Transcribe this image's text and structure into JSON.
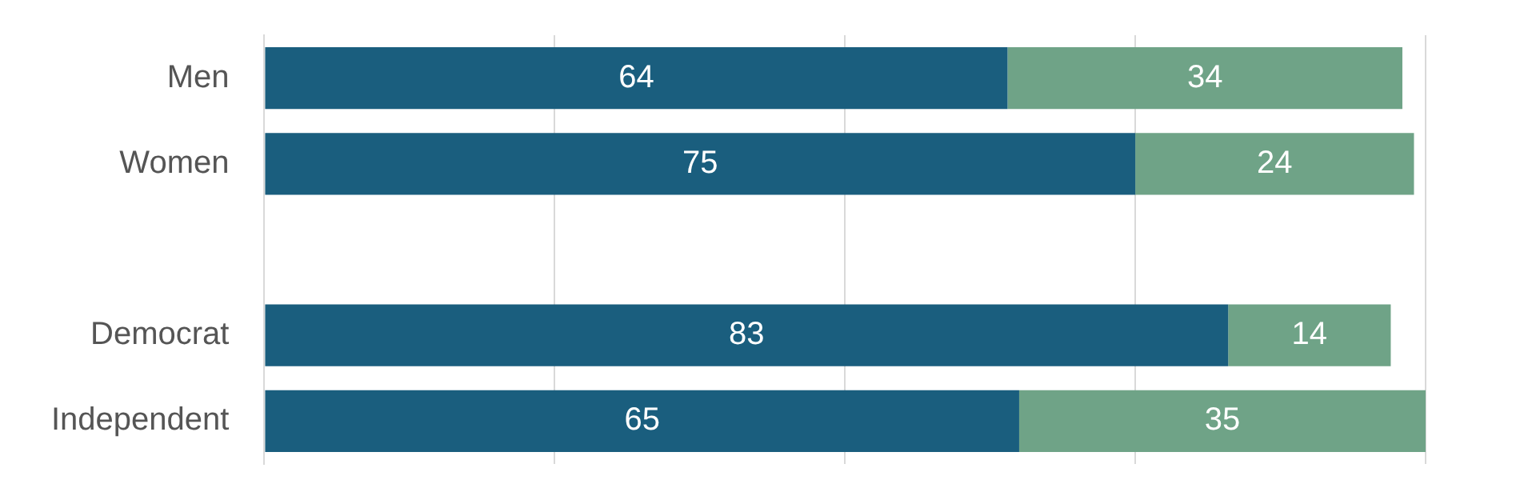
{
  "chart_data": {
    "type": "bar",
    "orientation": "horizontal",
    "stacked": true,
    "categories": [
      "Men",
      "Women",
      null,
      "Democrat",
      "Independent"
    ],
    "series": [
      {
        "color": "#1a5e7e",
        "values": [
          64,
          75,
          null,
          83,
          65
        ]
      },
      {
        "color": "#6fa387",
        "values": [
          34,
          24,
          null,
          14,
          35
        ]
      }
    ],
    "xlim": [
      0,
      100
    ],
    "xticks": [
      {
        "value": 0,
        "label": null
      },
      {
        "value": 25,
        "label": null
      },
      {
        "value": 50,
        "label": null
      },
      {
        "value": 75,
        "label": null
      },
      {
        "value": 100,
        "label": null
      }
    ],
    "tick_labels": "y",
    "grid": "x",
    "data_labels": true,
    "legend": false
  }
}
